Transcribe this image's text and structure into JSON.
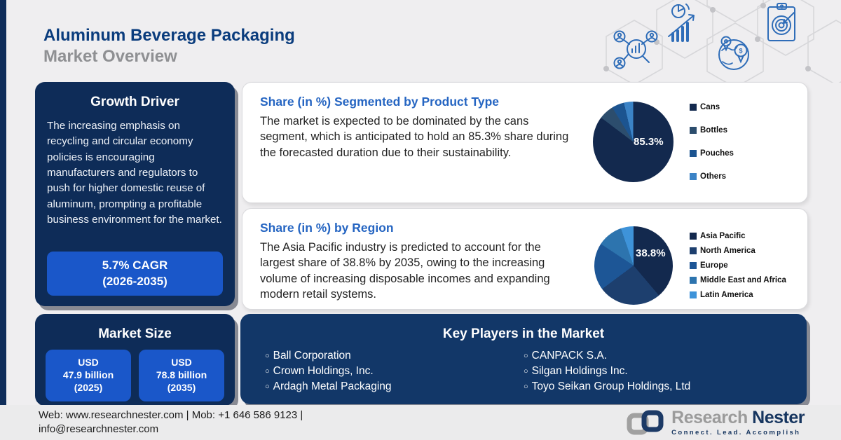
{
  "header": {
    "title_line1": "Aluminum Beverage Packaging",
    "title_line2": "Market Overview",
    "decor_icons": [
      "research-network-icon",
      "growth-chart-icon",
      "global-market-icon",
      "target-clipboard-icon"
    ]
  },
  "growth_driver": {
    "title": "Growth Driver",
    "body": "The increasing emphasis on recycling and circular economy policies is encouraging manufacturers and regulators to push for higher domestic reuse of aluminum, prompting a profitable business environment for the market.",
    "cagr_line1": "5.7% CAGR",
    "cagr_line2": "(2026-2035)"
  },
  "product_type_panel": {
    "title": "Share (in %) Segmented by Product Type",
    "body": "The market is expected to be dominated by the cans segment, which is anticipated to hold an 85.3% share during the forecasted duration due to their sustainability."
  },
  "region_panel": {
    "title": "Share (in %) by Region",
    "body": "The Asia Pacific industry is predicted to account for the largest share of 38.8% by 2035, owing to the increasing volume of increasing disposable incomes and expanding modern retail systems."
  },
  "market_size": {
    "title": "Market Size",
    "boxes": [
      {
        "line1": "USD",
        "line2": "47.9 billion",
        "line3": "(2025)"
      },
      {
        "line1": "USD",
        "line2": "78.8 billion",
        "line3": "(2035)"
      }
    ]
  },
  "key_players": {
    "title": "Key Players in the Market",
    "col1": [
      "Ball Corporation",
      "Crown Holdings, Inc.",
      "Ardagh Metal Packaging"
    ],
    "col2": [
      "CANPACK S.A.",
      "Silgan Holdings Inc.",
      "Toyo Seikan Group Holdings, Ltd"
    ]
  },
  "footer": {
    "contact_line1": "Web: www.researchnester.com | Mob: +1 646 586 9123 |",
    "contact_line2": "info@researchnester.com",
    "logo_text1": "Research",
    "logo_text2": "Nester",
    "tagline": "Connect. Lead. Accomplish"
  },
  "colors": {
    "navy_panel": "#0e2c58",
    "bright_blue": "#1a57c9",
    "heading_blue": "#0a3c7d",
    "panel_title_blue": "#2565c2",
    "left_strip": "#0f2d5a"
  },
  "chart_data": [
    {
      "type": "pie",
      "title": "Share (in %) Segmented by Product Type",
      "labels": [
        "Cans",
        "Bottles",
        "Pouches",
        "Others"
      ],
      "values": [
        85.3,
        6.0,
        5.0,
        3.7
      ],
      "colors": [
        "#13294e",
        "#2c4d6d",
        "#1c5490",
        "#3b83c6"
      ],
      "center_label": "85.3%",
      "legend_position": "right"
    },
    {
      "type": "pie",
      "title": "Share (in %) by Region",
      "labels": [
        "Asia Pacific",
        "North America",
        "Europe",
        "Middle East and Africa",
        "Latin America"
      ],
      "values": [
        38.8,
        26.0,
        19.5,
        10.5,
        5.2
      ],
      "colors": [
        "#13294e",
        "#1d3f6e",
        "#1d5696",
        "#2d74ae",
        "#3e93d9"
      ],
      "center_label": "38.8%",
      "legend_position": "right"
    }
  ]
}
